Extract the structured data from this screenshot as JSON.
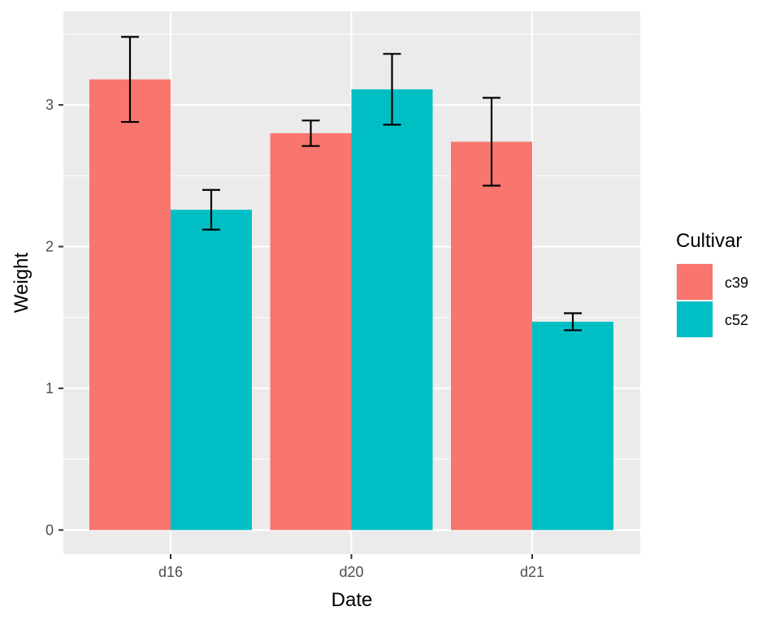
{
  "chart_data": {
    "type": "bar",
    "categories": [
      "d16",
      "d20",
      "d21"
    ],
    "series": [
      {
        "name": "c39",
        "color": "#F8766D",
        "values": [
          3.18,
          2.8,
          2.74
        ],
        "err_low": [
          2.88,
          2.71,
          2.43
        ],
        "err_high": [
          3.48,
          2.89,
          3.05
        ]
      },
      {
        "name": "c52",
        "color": "#00BFC4",
        "values": [
          2.26,
          3.11,
          1.47
        ],
        "err_low": [
          2.12,
          2.86,
          1.41
        ],
        "err_high": [
          2.4,
          3.36,
          1.53
        ]
      }
    ],
    "title": "",
    "xlabel": "Date",
    "ylabel": "Weight",
    "ylim": [
      -0.17,
      3.66
    ],
    "yticks": [
      0,
      1,
      2,
      3
    ],
    "ytick_labels": [
      "0",
      "1",
      "2",
      "3"
    ],
    "legend_title": "Cultivar",
    "legend_position": "right",
    "grid": true,
    "panel_background": "#EBEBEB",
    "grid_color": "#FFFFFF"
  }
}
